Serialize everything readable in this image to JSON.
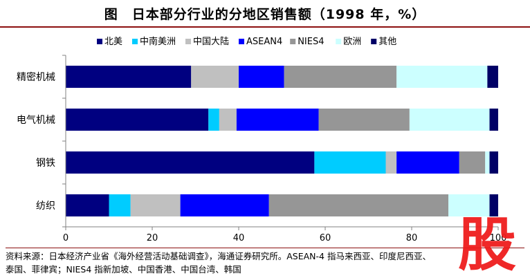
{
  "title": "图　日本部分行业的分地区销售额（1998 年，%）",
  "footnote": {
    "line1": "资料来源：日本经济产业省《海外经营活动基础调查》，海通证券研究所。ASEAN-4 指马来西亚、印度尼西亚、",
    "line2": "泰国、菲律宾；NIES4 指新加坡、中国香港、中国台湾、韩国"
  },
  "stamp": {
    "char": "股",
    "color": "#ee1c1c"
  },
  "chart_data": {
    "type": "bar",
    "orientation": "horizontal",
    "stacked": true,
    "categories": [
      "精密机械",
      "电气机械",
      "钢铁",
      "纺织"
    ],
    "series": [
      {
        "name": "北美",
        "color": "#000080",
        "values": [
          29,
          33,
          57.5,
          10
        ]
      },
      {
        "name": "中南美洲",
        "color": "#00ccff",
        "values": [
          0,
          2.5,
          16.5,
          5
        ]
      },
      {
        "name": "中国大陆",
        "color": "#c0c0c0",
        "values": [
          11,
          4,
          2.5,
          11.5
        ]
      },
      {
        "name": "ASEAN4",
        "color": "#0000ff",
        "values": [
          10.5,
          19,
          14.5,
          20.5
        ]
      },
      {
        "name": "NIES4",
        "color": "#969696",
        "values": [
          26,
          21,
          6,
          41.5
        ]
      },
      {
        "name": "欧洲",
        "color": "#ccffff",
        "values": [
          21,
          18.5,
          1,
          9.5
        ]
      },
      {
        "name": "其他",
        "color": "#000066",
        "values": [
          2.5,
          2,
          2,
          2
        ]
      }
    ],
    "x_ticks": [
      "0",
      "20",
      "40",
      "60",
      "80",
      "100"
    ],
    "xlim": [
      0,
      100
    ],
    "legend_position": "top",
    "grid": false
  }
}
